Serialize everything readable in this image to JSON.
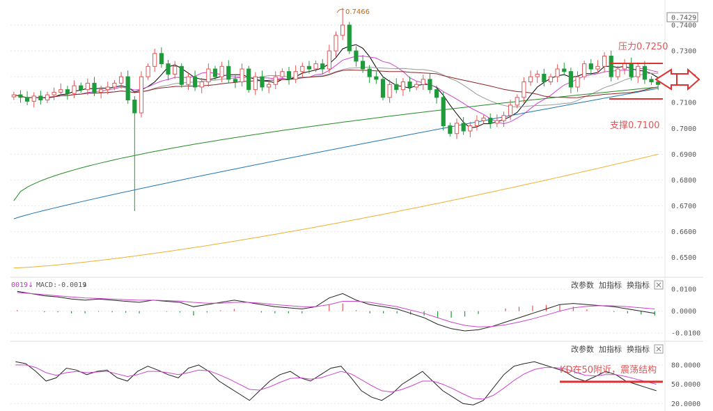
{
  "chart_data": [
    {
      "type": "candlestick",
      "panel": "price",
      "ylim": [
        0.644,
        0.747
      ],
      "y_ticks": [
        "0.7429",
        "0.7400",
        "0.7300",
        "0.7200",
        "0.7100",
        "0.7000",
        "0.6900",
        "0.6800",
        "0.6700",
        "0.6600",
        "0.6500"
      ],
      "y_tick_values": [
        0.7429,
        0.74,
        0.73,
        0.72,
        0.71,
        0.7,
        0.69,
        0.68,
        0.67,
        0.66,
        0.65
      ],
      "peak_label": "0.7466",
      "peak_value": 0.7466,
      "close_series": [
        0.713,
        0.712,
        0.7105,
        0.7125,
        0.711,
        0.713,
        0.714,
        0.715,
        0.7135,
        0.7165,
        0.715,
        0.7175,
        0.714,
        0.715,
        0.716,
        0.7175,
        0.72,
        0.711,
        0.706,
        0.72,
        0.724,
        0.729,
        0.725,
        0.721,
        0.724,
        0.717,
        0.72,
        0.716,
        0.718,
        0.723,
        0.72,
        0.724,
        0.719,
        0.718,
        0.723,
        0.715,
        0.72,
        0.716,
        0.717,
        0.72,
        0.722,
        0.719,
        0.722,
        0.724,
        0.723,
        0.725,
        0.723,
        0.73,
        0.736,
        0.74,
        0.73,
        0.726,
        0.723,
        0.72,
        0.719,
        0.712,
        0.717,
        0.715,
        0.718,
        0.716,
        0.717,
        0.719,
        0.715,
        0.712,
        0.701,
        0.698,
        0.702,
        0.699,
        0.701,
        0.703,
        0.704,
        0.702,
        0.703,
        0.705,
        0.709,
        0.712,
        0.718,
        0.72,
        0.721,
        0.718,
        0.72,
        0.723,
        0.722,
        0.716,
        0.72,
        0.725,
        0.723,
        0.724,
        0.728,
        0.72,
        0.723,
        0.725,
        0.72,
        0.724,
        0.719,
        0.718,
        0.717
      ],
      "big_green_candle_low": 0.668,
      "moving_averages": [
        {
          "color": "#000000"
        },
        {
          "color": "#cc44cc"
        },
        {
          "color": "#999999"
        },
        {
          "color": "#8b2222"
        },
        {
          "color": "#228b22"
        },
        {
          "color": "#1f77b4"
        },
        {
          "color": "#f0b030"
        }
      ],
      "annotations": [
        {
          "text": "压力0.7250",
          "value": 0.725,
          "color": "#e05555"
        },
        {
          "text": "支撑0.7100",
          "value": 0.71,
          "color": "#e05555"
        }
      ]
    },
    {
      "type": "bar",
      "panel": "macd",
      "label_partial": "0019",
      "label": "MACD:-0.0019",
      "ylim": [
        -0.0125,
        0.011
      ],
      "y_ticks": [
        "0.0100",
        "0.0000",
        "-0.0100"
      ],
      "y_tick_values": [
        0.01,
        0.0,
        -0.01
      ],
      "buttons": [
        "改参数",
        "加指标",
        "换指标"
      ],
      "dif": [
        0.009,
        0.008,
        0.007,
        0.0065,
        0.0055,
        0.005,
        0.0055,
        0.005,
        0.0045,
        0.004,
        0.005,
        0.0045,
        0.004,
        0.002,
        0.003,
        0.004,
        0.005,
        0.004,
        0.003,
        0.002,
        0.0015,
        0.001,
        0.002,
        0.006,
        0.008,
        0.005,
        0.003,
        0.002,
        0.001,
        -0.001,
        -0.003,
        -0.006,
        -0.008,
        -0.009,
        -0.0085,
        -0.007,
        -0.005,
        -0.003,
        -0.001,
        0.001,
        0.003,
        0.0035,
        0.003,
        0.0025,
        0.002,
        0.001,
        0.0,
        -0.001
      ],
      "dea": [
        0.0085,
        0.008,
        0.0075,
        0.007,
        0.0065,
        0.006,
        0.0058,
        0.0055,
        0.0052,
        0.005,
        0.005,
        0.0048,
        0.0046,
        0.004,
        0.0036,
        0.0036,
        0.004,
        0.004,
        0.0036,
        0.003,
        0.0025,
        0.002,
        0.002,
        0.003,
        0.0045,
        0.0045,
        0.004,
        0.003,
        0.002,
        0.0005,
        -0.001,
        -0.003,
        -0.005,
        -0.0065,
        -0.0072,
        -0.007,
        -0.0062,
        -0.005,
        -0.0035,
        -0.0018,
        0.0,
        0.0015,
        0.0022,
        0.0025,
        0.0024,
        0.002,
        0.0015,
        0.001
      ],
      "histogram": [
        0.0005,
        0.0,
        -0.0005,
        -0.0005,
        -0.001,
        -0.001,
        -0.0003,
        -0.0005,
        -0.0007,
        -0.001,
        0.0,
        -0.0003,
        -0.0006,
        -0.002,
        -0.0006,
        0.0004,
        0.001,
        0.0,
        -0.0006,
        -0.001,
        -0.001,
        -0.001,
        0.0,
        0.003,
        0.0035,
        0.0005,
        -0.001,
        -0.001,
        -0.001,
        -0.0015,
        -0.002,
        -0.003,
        -0.003,
        -0.0025,
        -0.0013,
        0.0,
        0.0012,
        0.002,
        0.0025,
        0.0028,
        0.003,
        0.002,
        0.0008,
        0.0,
        -0.0004,
        -0.001,
        -0.0015,
        -0.002
      ]
    },
    {
      "type": "line",
      "panel": "kd",
      "ylim": [
        15,
        95
      ],
      "y_ticks": [
        "80.0000",
        "50.0000",
        "20.0000"
      ],
      "y_tick_values": [
        80,
        50,
        20
      ],
      "buttons": [
        "改参数",
        "加指标",
        "换指标"
      ],
      "annotation": {
        "text": "KD在50附近，震荡结构",
        "value": 50,
        "color": "#e05555"
      },
      "k": [
        85,
        82,
        70,
        55,
        60,
        75,
        72,
        65,
        70,
        72,
        60,
        55,
        70,
        78,
        72,
        65,
        60,
        75,
        80,
        70,
        55,
        45,
        35,
        25,
        40,
        55,
        65,
        70,
        60,
        55,
        65,
        75,
        78,
        60,
        40,
        30,
        25,
        35,
        50,
        60,
        70,
        55,
        40,
        30,
        20,
        18,
        25,
        45,
        65,
        78,
        82,
        85,
        80,
        75,
        70,
        60,
        55,
        62,
        70,
        65,
        55,
        50,
        45,
        40
      ],
      "d": [
        80,
        80,
        76,
        68,
        64,
        68,
        70,
        68,
        69,
        70,
        66,
        62,
        65,
        70,
        70,
        68,
        65,
        68,
        72,
        71,
        65,
        58,
        50,
        42,
        41,
        46,
        53,
        59,
        60,
        58,
        60,
        65,
        70,
        66,
        57,
        48,
        40,
        38,
        42,
        48,
        55,
        55,
        50,
        43,
        35,
        28,
        27,
        33,
        44,
        56,
        66,
        73,
        76,
        76,
        74,
        69,
        64,
        63,
        65,
        65,
        62,
        58,
        54,
        50
      ]
    }
  ]
}
